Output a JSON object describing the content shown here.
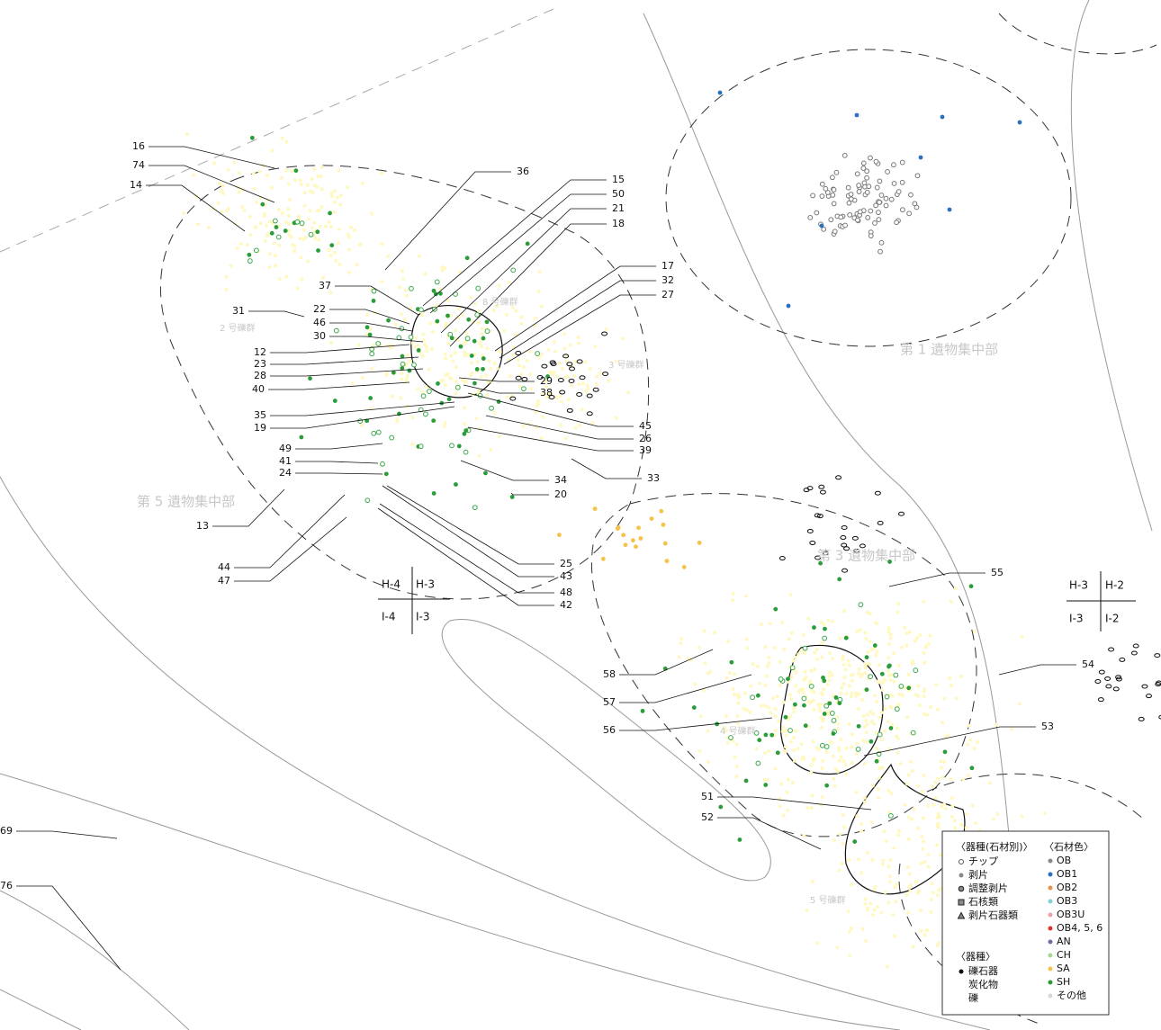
{
  "labels": [
    "16",
    "74",
    "14",
    "36",
    "15",
    "50",
    "21",
    "18",
    "17",
    "32",
    "27",
    "37",
    "22",
    "46",
    "30",
    "31",
    "12",
    "23",
    "28",
    "40",
    "29",
    "38",
    "35",
    "19",
    "45",
    "26",
    "39",
    "49",
    "41",
    "24",
    "33",
    "34",
    "20",
    "13",
    "25",
    "43",
    "48",
    "42",
    "44",
    "47",
    "55",
    "54",
    "58",
    "57",
    "56",
    "53",
    "51",
    "52",
    "69",
    "76"
  ],
  "regions": [
    "第 1 遺物集中部",
    "第 3 遺物集中部",
    "第 5 遺物集中部",
    "2 号礫群",
    "3 号礫群",
    "4 号礫群",
    "5 号礫群",
    "8 号礫群"
  ],
  "grid_left": [
    "H-4",
    "H-3",
    "I-4",
    "I-3"
  ],
  "grid_right": [
    "H-3",
    "H-2",
    "I-3",
    "I-2"
  ],
  "legend": {
    "type_heading": "〈器種(石材別)〉",
    "types": [
      "チップ",
      "剥片",
      "調整剥片",
      "石核類",
      "剥片石器類"
    ],
    "color_heading": "〈石材色〉",
    "colors": [
      "OB",
      "OB1",
      "OB2",
      "OB3",
      "OB3U",
      "OB4, 5, 6",
      "AN",
      "CH",
      "SA",
      "SH",
      "その他"
    ],
    "kind_heading": "〈器種〉",
    "kinds": [
      "礫石器",
      "炭化物",
      "礫"
    ]
  }
}
